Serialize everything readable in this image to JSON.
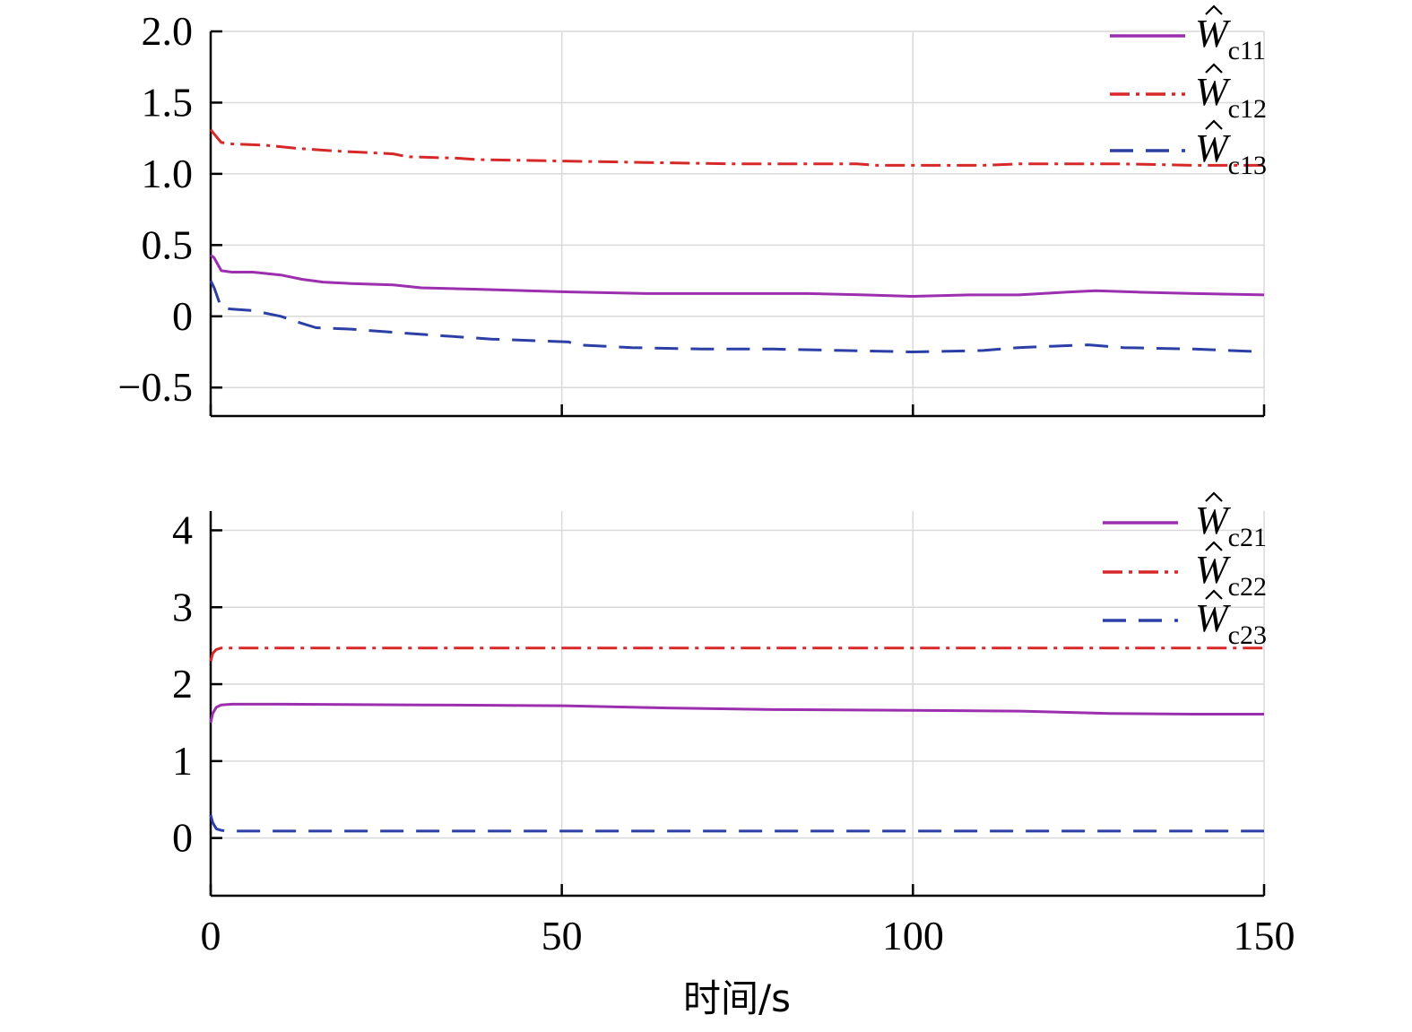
{
  "chart_data": [
    {
      "type": "line",
      "title": "",
      "xlabel": "",
      "ylabel": "",
      "xlim": [
        0,
        150
      ],
      "ylim": [
        -0.7,
        2.0
      ],
      "xticks": [
        0,
        50,
        100,
        150
      ],
      "yticks": [
        -0.5,
        0,
        0.5,
        1.0,
        1.5,
        2.0
      ],
      "ytick_labels": [
        "−0.5",
        "0",
        "0.5",
        "1.0",
        "1.5",
        "2.0"
      ],
      "grid": true,
      "legend_position": "top-right",
      "series": [
        {
          "name": "Ŵc11",
          "legend_base": "W",
          "legend_sub": "c11",
          "color": "#9b2fae",
          "style": "solid",
          "x": [
            0,
            0.5,
            1.5,
            3,
            6,
            10,
            13,
            16,
            20,
            26,
            30,
            38,
            45,
            52,
            62,
            75,
            85,
            93,
            100,
            108,
            115,
            122,
            126,
            132,
            140,
            150
          ],
          "y": [
            0.43,
            0.41,
            0.32,
            0.31,
            0.31,
            0.29,
            0.26,
            0.24,
            0.23,
            0.22,
            0.2,
            0.19,
            0.18,
            0.17,
            0.16,
            0.16,
            0.16,
            0.15,
            0.14,
            0.15,
            0.15,
            0.17,
            0.18,
            0.17,
            0.16,
            0.15
          ]
        },
        {
          "name": "Ŵc12",
          "legend_base": "W",
          "legend_sub": "c12",
          "color": "#d62828",
          "style": "dash-dot",
          "x": [
            0,
            0.5,
            1.5,
            3,
            8,
            12,
            18,
            26,
            28,
            35,
            38,
            50,
            62,
            75,
            85,
            92,
            95,
            100,
            110,
            115,
            125,
            130,
            140,
            150
          ],
          "y": [
            1.31,
            1.28,
            1.22,
            1.21,
            1.2,
            1.18,
            1.16,
            1.14,
            1.12,
            1.11,
            1.1,
            1.09,
            1.08,
            1.07,
            1.07,
            1.07,
            1.06,
            1.06,
            1.06,
            1.07,
            1.07,
            1.07,
            1.06,
            1.06
          ]
        },
        {
          "name": "Ŵc13",
          "legend_base": "W",
          "legend_sub": "c13",
          "color": "#2b3fa6",
          "style": "dashed",
          "x": [
            0,
            0.5,
            1.5,
            3,
            6,
            10,
            13,
            15,
            20,
            28,
            40,
            51,
            52,
            60,
            70,
            80,
            90,
            100,
            110,
            115,
            120,
            125,
            130,
            140,
            150
          ],
          "y": [
            0.25,
            0.2,
            0.06,
            0.05,
            0.04,
            0.0,
            -0.05,
            -0.08,
            -0.09,
            -0.12,
            -0.16,
            -0.18,
            -0.2,
            -0.22,
            -0.23,
            -0.23,
            -0.24,
            -0.25,
            -0.24,
            -0.22,
            -0.21,
            -0.2,
            -0.22,
            -0.23,
            -0.25
          ]
        }
      ]
    },
    {
      "type": "line",
      "title": "",
      "xlabel": "时间/s",
      "ylabel": "",
      "xlim": [
        0,
        150
      ],
      "ylim": [
        -0.75,
        4.25
      ],
      "xticks": [
        0,
        50,
        100,
        150
      ],
      "xtick_labels": [
        "0",
        "50",
        "100",
        "150"
      ],
      "yticks": [
        0,
        1,
        2,
        3,
        4
      ],
      "ytick_labels": [
        "0",
        "1",
        "2",
        "3",
        "4"
      ],
      "grid": true,
      "legend_position": "top-right",
      "series": [
        {
          "name": "Ŵc21",
          "legend_base": "W",
          "legend_sub": "c21",
          "color": "#9b2fae",
          "style": "solid",
          "x": [
            0,
            0.3,
            0.8,
            1.5,
            3,
            10,
            30,
            50,
            65,
            80,
            100,
            115,
            128,
            140,
            150
          ],
          "y": [
            1.5,
            1.62,
            1.7,
            1.73,
            1.74,
            1.74,
            1.73,
            1.72,
            1.69,
            1.67,
            1.66,
            1.65,
            1.62,
            1.61,
            1.61
          ]
        },
        {
          "name": "Ŵc22",
          "legend_base": "W",
          "legend_sub": "c22",
          "color": "#d62828",
          "style": "dash-dot",
          "x": [
            0,
            0.3,
            0.8,
            1.5,
            3,
            50,
            100,
            150
          ],
          "y": [
            2.3,
            2.4,
            2.45,
            2.47,
            2.47,
            2.47,
            2.47,
            2.47
          ]
        },
        {
          "name": "Ŵc23",
          "legend_base": "W",
          "legend_sub": "c23",
          "color": "#2b3fa6",
          "style": "dashed",
          "x": [
            0,
            0.3,
            0.8,
            1.5,
            3,
            50,
            100,
            150
          ],
          "y": [
            0.3,
            0.2,
            0.12,
            0.1,
            0.09,
            0.09,
            0.09,
            0.09
          ]
        }
      ]
    }
  ]
}
